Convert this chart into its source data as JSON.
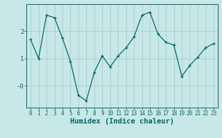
{
  "xlabel": "Humidex (Indice chaleur)",
  "x": [
    0,
    1,
    2,
    3,
    4,
    5,
    6,
    7,
    8,
    9,
    10,
    11,
    12,
    13,
    14,
    15,
    16,
    17,
    18,
    19,
    20,
    21,
    22,
    23
  ],
  "y": [
    1.7,
    1.0,
    2.6,
    2.5,
    1.75,
    0.9,
    -0.35,
    -0.55,
    0.5,
    1.1,
    0.7,
    1.1,
    1.4,
    1.8,
    2.6,
    2.7,
    1.9,
    1.6,
    1.5,
    0.35,
    0.75,
    1.05,
    1.4,
    1.55
  ],
  "line_color": "#006666",
  "marker": "+",
  "bg_color": "#c8e8e8",
  "grid_color": "#aacccc",
  "axis_color": "#006666",
  "tick_color": "#006666",
  "ylim": [
    -0.8,
    3.0
  ],
  "ytick_vals": [
    0.0,
    1.0,
    2.0
  ],
  "ytick_labels": [
    "-0",
    "1",
    "2"
  ],
  "figsize": [
    3.2,
    2.0
  ],
  "dpi": 100,
  "xlabel_fontsize": 7.5,
  "tick_fontsize": 5.5
}
